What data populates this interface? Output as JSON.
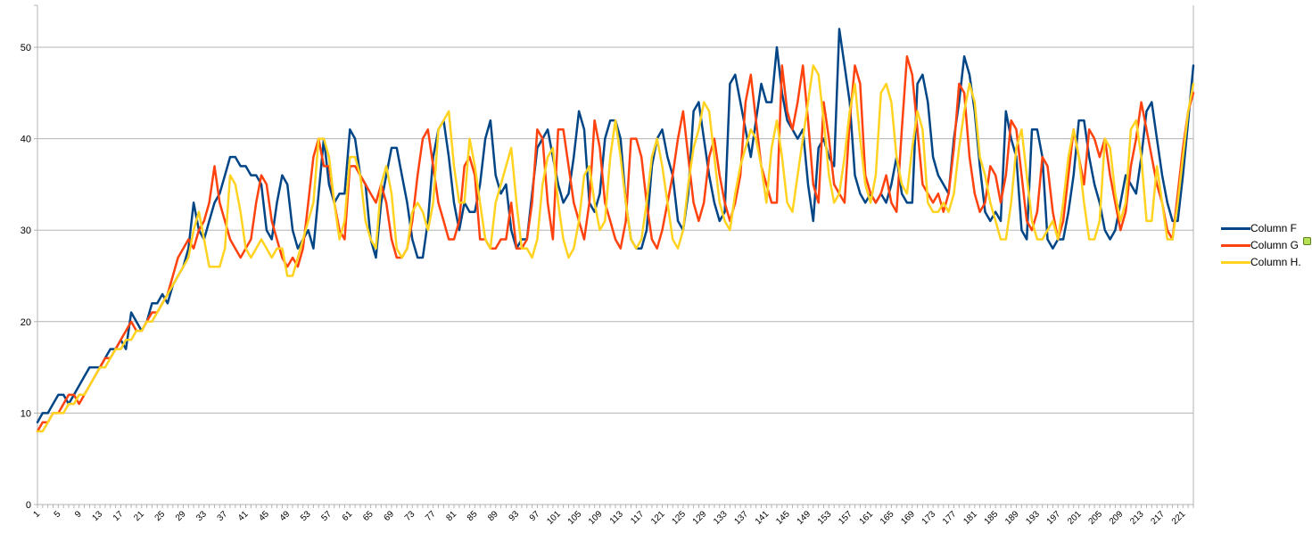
{
  "window": {
    "background": "#ffffff"
  },
  "artifacts": {
    "selection_handle_color": "#b7e052"
  },
  "chart_data": {
    "type": "line",
    "title": "",
    "xlabel": "",
    "ylabel": "",
    "grid": "on",
    "legend_position": "right",
    "x_count": 223,
    "x_tick_step": 4,
    "x_tick_labels": [
      1,
      5,
      9,
      13,
      17,
      21,
      25,
      29,
      33,
      37,
      41,
      45,
      49,
      53,
      57,
      61,
      65,
      69,
      73,
      77,
      81,
      85,
      89,
      93,
      97,
      101,
      105,
      109,
      113,
      117,
      121,
      125,
      129,
      133,
      137,
      141,
      145,
      149,
      153,
      157,
      161,
      165,
      169,
      173,
      177,
      181,
      185,
      189,
      193,
      197,
      201,
      205,
      209,
      213,
      217,
      221
    ],
    "y_ticks": [
      0,
      10,
      20,
      30,
      40,
      50
    ],
    "y_axis_range": [
      0,
      54
    ],
    "colors": {
      "grid": "#b3b3b3",
      "axis": "#b3b3b3",
      "text": "#000000"
    },
    "series": [
      {
        "name": "Column F",
        "color": "#004586",
        "values": [
          9,
          10,
          10,
          11,
          12,
          12,
          11,
          12,
          13,
          14,
          15,
          15,
          15,
          16,
          17,
          17,
          18,
          17,
          21,
          20,
          19,
          20,
          22,
          22,
          23,
          22,
          24,
          25,
          26,
          28,
          33,
          30,
          29,
          31,
          33,
          34,
          36,
          38,
          38,
          37,
          37,
          36,
          36,
          35,
          30,
          29,
          33,
          36,
          35,
          30,
          28,
          29,
          30,
          28,
          34,
          40,
          35,
          33,
          34,
          34,
          41,
          40,
          36,
          35,
          29,
          27,
          33,
          36,
          39,
          39,
          36,
          33,
          29,
          27,
          27,
          31,
          38,
          41,
          42,
          38,
          33,
          30,
          33,
          32,
          32,
          35,
          40,
          42,
          36,
          34,
          35,
          30,
          28,
          29,
          29,
          34,
          39,
          40,
          41,
          38,
          35,
          33,
          34,
          38,
          43,
          41,
          33,
          32,
          34,
          40,
          42,
          42,
          40,
          33,
          29,
          28,
          28,
          30,
          37,
          40,
          41,
          38,
          36,
          31,
          30,
          34,
          43,
          44,
          40,
          36,
          33,
          31,
          32,
          46,
          47,
          44,
          41,
          38,
          42,
          46,
          44,
          44,
          50,
          45,
          42,
          41,
          40,
          41,
          35,
          31,
          39,
          40,
          38,
          37,
          52,
          48,
          44,
          36,
          34,
          33,
          34,
          33,
          34,
          33,
          35,
          38,
          34,
          33,
          33,
          46,
          47,
          44,
          38,
          36,
          35,
          34,
          40,
          44,
          49,
          47,
          43,
          37,
          32,
          31,
          32,
          31,
          43,
          40,
          38,
          30,
          29,
          41,
          41,
          38,
          29,
          28,
          29,
          29,
          32,
          36,
          42,
          42,
          38,
          35,
          33,
          30,
          29,
          30,
          33,
          36,
          35,
          34,
          38,
          43,
          44,
          40,
          36,
          33,
          31,
          31,
          36,
          42,
          48
        ]
      },
      {
        "name": "Column G",
        "color": "#ff420e",
        "values": [
          8,
          9,
          9,
          10,
          10,
          11,
          12,
          12,
          11,
          12,
          13,
          14,
          15,
          16,
          16,
          17,
          18,
          19,
          20,
          19,
          19,
          20,
          21,
          21,
          22,
          23,
          25,
          27,
          28,
          29,
          28,
          30,
          31,
          33,
          37,
          33,
          31,
          29,
          28,
          27,
          28,
          29,
          33,
          36,
          35,
          31,
          29,
          27,
          26,
          27,
          26,
          28,
          33,
          38,
          40,
          37,
          37,
          33,
          30,
          29,
          37,
          37,
          36,
          35,
          34,
          33,
          35,
          33,
          29,
          27,
          27,
          28,
          31,
          36,
          40,
          41,
          37,
          33,
          31,
          29,
          29,
          31,
          37,
          38,
          36,
          29,
          29,
          28,
          28,
          29,
          29,
          33,
          28,
          28,
          29,
          33,
          41,
          40,
          33,
          29,
          41,
          41,
          37,
          33,
          31,
          29,
          33,
          42,
          39,
          33,
          31,
          29,
          28,
          31,
          40,
          40,
          38,
          33,
          29,
          28,
          30,
          33,
          36,
          40,
          43,
          38,
          33,
          31,
          33,
          38,
          40,
          36,
          33,
          31,
          33,
          36,
          44,
          47,
          42,
          37,
          35,
          33,
          33,
          48,
          43,
          41,
          44,
          48,
          42,
          35,
          33,
          44,
          40,
          35,
          34,
          33,
          42,
          48,
          46,
          36,
          34,
          33,
          34,
          36,
          33,
          32,
          41,
          49,
          47,
          41,
          35,
          34,
          33,
          34,
          32,
          34,
          39,
          46,
          45,
          38,
          34,
          32,
          33,
          37,
          36,
          33,
          36,
          42,
          41,
          36,
          31,
          30,
          32,
          38,
          37,
          32,
          29,
          31,
          36,
          41,
          38,
          35,
          41,
          40,
          38,
          40,
          36,
          33,
          30,
          32,
          37,
          40,
          44,
          41,
          38,
          35,
          33,
          30,
          29,
          34,
          39,
          43,
          45
        ]
      },
      {
        "name": "Column H.",
        "color": "#ffd320",
        "values": [
          8,
          8,
          9,
          10,
          10,
          10,
          11,
          11,
          12,
          12,
          13,
          14,
          15,
          15,
          16,
          17,
          17,
          18,
          18,
          19,
          19,
          20,
          20,
          21,
          22,
          23,
          24,
          25,
          26,
          27,
          30,
          32,
          29,
          26,
          26,
          26,
          28,
          36,
          35,
          32,
          28,
          27,
          28,
          29,
          28,
          27,
          28,
          28,
          25,
          25,
          27,
          29,
          31,
          33,
          40,
          40,
          38,
          33,
          29,
          31,
          38,
          38,
          36,
          31,
          29,
          28,
          35,
          37,
          34,
          28,
          27,
          28,
          32,
          33,
          32,
          30,
          33,
          41,
          42,
          43,
          37,
          33,
          33,
          40,
          37,
          33,
          29,
          28,
          33,
          35,
          37,
          39,
          33,
          28,
          28,
          27,
          29,
          35,
          38,
          39,
          33,
          29,
          27,
          28,
          31,
          36,
          37,
          33,
          30,
          31,
          38,
          42,
          38,
          33,
          29,
          28,
          29,
          33,
          38,
          40,
          37,
          33,
          29,
          28,
          30,
          35,
          39,
          41,
          44,
          43,
          38,
          33,
          31,
          30,
          34,
          37,
          39,
          41,
          40,
          37,
          33,
          39,
          42,
          38,
          33,
          32,
          36,
          40,
          44,
          48,
          47,
          42,
          36,
          33,
          34,
          38,
          43,
          46,
          40,
          35,
          33,
          36,
          45,
          46,
          44,
          38,
          35,
          34,
          39,
          43,
          41,
          33,
          32,
          32,
          33,
          32,
          34,
          39,
          43,
          46,
          44,
          38,
          36,
          33,
          31,
          29,
          29,
          33,
          39,
          41,
          36,
          31,
          29,
          29,
          30,
          31,
          29,
          33,
          38,
          41,
          38,
          33,
          29,
          29,
          31,
          40,
          39,
          34,
          31,
          33,
          41,
          42,
          38,
          31,
          31,
          37,
          33,
          29,
          29,
          33,
          38,
          43,
          46
        ]
      }
    ]
  }
}
